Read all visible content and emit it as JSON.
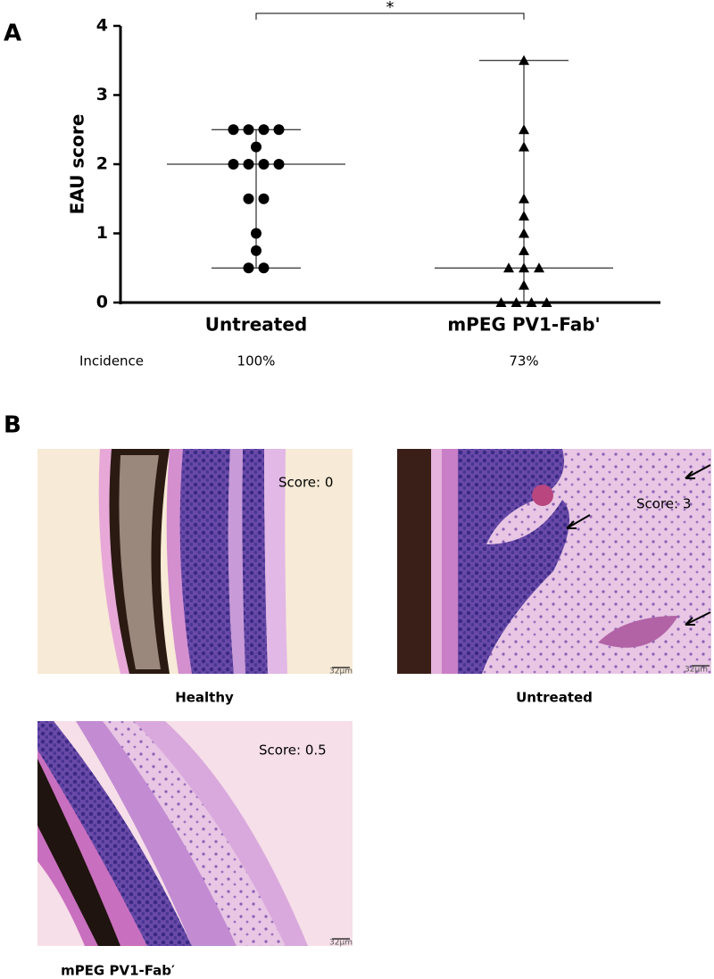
{
  "chart_data": {
    "type": "scatter",
    "ylabel": "EAU score",
    "categories": [
      "Untreated",
      "mPEG PV1-Fab'"
    ],
    "ylim": [
      0,
      4
    ],
    "yticks": [
      0,
      1,
      2,
      3,
      4
    ],
    "series": [
      {
        "name": "Untreated",
        "color": "#000000",
        "marker": "circle",
        "values": [
          2.5,
          2.5,
          2.5,
          2.5,
          2.25,
          2,
          2,
          2,
          2,
          1.5,
          1.5,
          1,
          0.75,
          0.5,
          0.5
        ],
        "median": 2,
        "range": [
          0.5,
          2.5
        ]
      },
      {
        "name": "mPEG PV1-Fab'",
        "color": "#000000",
        "marker": "triangle",
        "values": [
          3.5,
          2.5,
          2.25,
          1.5,
          1.25,
          1,
          0.75,
          0.5,
          0.5,
          0.5,
          0.25,
          0,
          0,
          0,
          0
        ],
        "median": 0.5,
        "range": [
          0,
          3.5
        ]
      }
    ],
    "significance": "*"
  },
  "panel_labels": [
    "A",
    "B"
  ],
  "incidence": {
    "label": "Incidence",
    "values": [
      "100%",
      "73%"
    ]
  },
  "histology": [
    {
      "score": "Score: 0",
      "caption": "Healthy",
      "scale_bar": "32µm"
    },
    {
      "score": "Score: 3",
      "caption": "Untreated",
      "scale_bar": "32µm"
    },
    {
      "score": "Score: 0.5",
      "caption": "mPEG PV1-Fab′",
      "scale_bar": "32µm"
    }
  ]
}
